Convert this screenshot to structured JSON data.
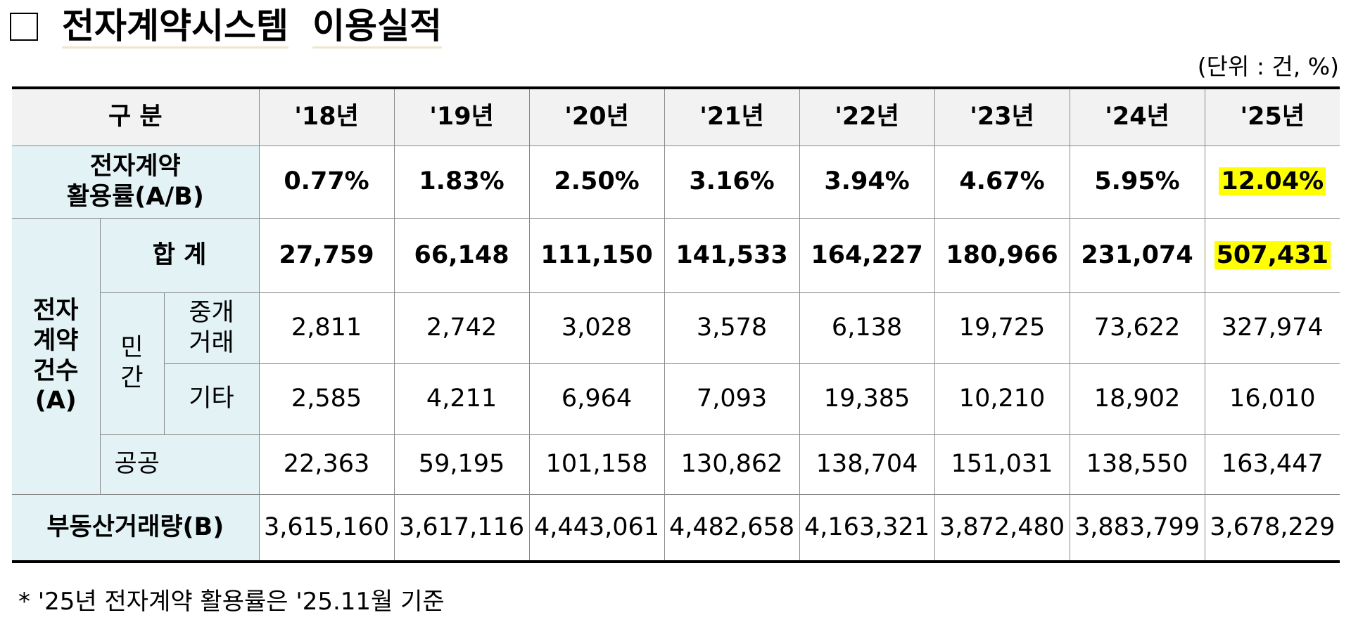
{
  "header": {
    "title": [
      "전자계약시스템",
      "이용실적"
    ],
    "unit": "(단위 : 건, %)"
  },
  "table": {
    "columns": [
      "구 분",
      "'18년",
      "'19년",
      "'20년",
      "'21년",
      "'22년",
      "'23년",
      "'24년",
      "'25년"
    ],
    "rate": {
      "label": [
        "전자계약",
        "활용률(A/B)"
      ],
      "values": [
        "0.77%",
        "1.83%",
        "2.50%",
        "3.16%",
        "3.94%",
        "4.67%",
        "5.95%",
        "12.04%"
      ]
    },
    "count": {
      "label": [
        "전자",
        "계약",
        "건수",
        "(A)"
      ],
      "total": {
        "label": "합 계",
        "values": [
          "27,759",
          "66,148",
          "111,150",
          "141,533",
          "164,227",
          "180,966",
          "231,074",
          "507,431"
        ]
      },
      "private": {
        "label": [
          "민",
          "간"
        ],
        "brokered": {
          "label": [
            "중개",
            "거래"
          ],
          "values": [
            "2,811",
            "2,742",
            "3,028",
            "3,578",
            "6,138",
            "19,725",
            "73,622",
            "327,974"
          ]
        },
        "other": {
          "label": "기타",
          "values": [
            "2,585",
            "4,211",
            "6,964",
            "7,093",
            "19,385",
            "10,210",
            "18,902",
            "16,010"
          ]
        }
      },
      "public": {
        "label": "공공",
        "values": [
          "22,363",
          "59,195",
          "101,158",
          "130,862",
          "138,704",
          "151,031",
          "138,550",
          "163,447"
        ]
      }
    },
    "volume": {
      "label": "부동산거래량(B)",
      "values": [
        "3,615,160",
        "3,617,116",
        "4,443,061",
        "4,482,658",
        "4,163,321",
        "3,872,480",
        "3,883,799",
        "3,678,229"
      ]
    }
  },
  "footnote": "*  '25년  전자계약  활용률은  '25.11월  기준"
}
